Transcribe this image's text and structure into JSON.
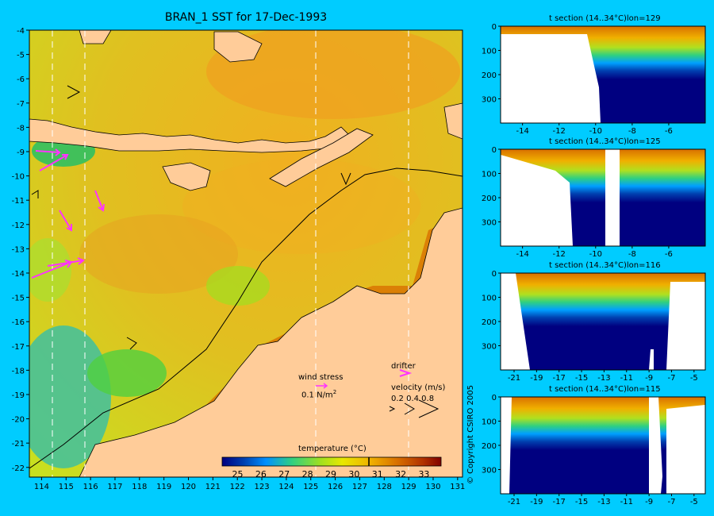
{
  "title": "BRAN_1 SST for 17-Dec-1993",
  "map": {
    "lon_ticks": [
      "114",
      "115",
      "116",
      "117",
      "118",
      "119",
      "120",
      "121",
      "122",
      "123",
      "124",
      "125",
      "126",
      "127",
      "128",
      "129",
      "130",
      "131"
    ],
    "lat_ticks": [
      "-4",
      "-5",
      "-6",
      "-7",
      "-8",
      "-9",
      "-10",
      "-11",
      "-12",
      "-13",
      "-14",
      "-15",
      "-16",
      "-17",
      "-18",
      "-19",
      "-20",
      "-21",
      "-22"
    ],
    "section_lons": [
      114.6,
      115.85,
      125.5,
      129.3
    ],
    "land_color": "#ffcc99",
    "vector_color": "#ff33ff",
    "legend": {
      "wind_stress_label": "wind stress",
      "wind_stress_scale": "0.1 N/m",
      "wind_stress_sup": "2",
      "drifter_label": "drifter",
      "velocity_label": "velocity (m/s)",
      "velocity_values": "0.2 0.4 0.8"
    }
  },
  "colorbar": {
    "title": "temperature (°C)",
    "ticks": [
      "25",
      "26",
      "27",
      "28",
      "29",
      "30",
      "31",
      "32",
      "33"
    ],
    "colors": [
      "#000080",
      "#0050c0",
      "#00a0ff",
      "#30d080",
      "#a0e020",
      "#e8e800",
      "#f0b000",
      "#d87000",
      "#b03000",
      "#800000"
    ],
    "range": [
      24.3,
      33.7
    ]
  },
  "chart_data": [
    {
      "type": "heatmap",
      "title": "BRAN_1 SST for 17-Dec-1993",
      "xlabel": "",
      "ylabel": "",
      "xlim": [
        113.5,
        131.2
      ],
      "ylim": [
        -22.4,
        -4
      ],
      "x_ticks": [
        114,
        115,
        116,
        117,
        118,
        119,
        120,
        121,
        122,
        123,
        124,
        125,
        126,
        127,
        128,
        129,
        130,
        131
      ],
      "y_ticks": [
        -4,
        -5,
        -6,
        -7,
        -8,
        -9,
        -10,
        -11,
        -12,
        -13,
        -14,
        -15,
        -16,
        -17,
        -18,
        -19,
        -20,
        -21,
        -22
      ],
      "colorbar_label": "temperature (°C)",
      "colorbar_range": [
        24.3,
        33.7
      ],
      "section_longitudes": [
        114.6,
        115.85,
        125.5,
        129.3
      ]
    },
    {
      "type": "heatmap",
      "title": "t section (14..34°C)lon=129",
      "x_ticks": [
        "-14",
        "-12",
        "-10",
        "-8",
        "-6"
      ],
      "y_ticks": [
        "0",
        "100",
        "200",
        "300"
      ],
      "xlim": [
        -15.2,
        -4
      ],
      "ylim": [
        400,
        0
      ],
      "mixed_layer_depth": 55,
      "thermocline_depth": 120
    },
    {
      "type": "heatmap",
      "title": "t section (14..34°C)lon=125",
      "x_ticks": [
        "-14",
        "-12",
        "-10",
        "-8",
        "-6"
      ],
      "y_ticks": [
        "0",
        "100",
        "200",
        "300"
      ],
      "xlim": [
        -15.2,
        -4
      ],
      "ylim": [
        400,
        0
      ],
      "mixed_layer_depth": 50,
      "thermocline_depth": 110
    },
    {
      "type": "heatmap",
      "title": "t section (14..34°C)lon=116",
      "x_ticks": [
        "-21",
        "-19",
        "-17",
        "-15",
        "-13",
        "-11",
        "-9",
        "-7",
        "-5"
      ],
      "y_ticks": [
        "0",
        "100",
        "200",
        "300"
      ],
      "xlim": [
        -22.2,
        -4
      ],
      "ylim": [
        400,
        0
      ],
      "mixed_layer_depth": 60,
      "thermocline_depth": 150
    },
    {
      "type": "heatmap",
      "title": "t section (14..34°C)lon=115",
      "x_ticks": [
        "-21",
        "-19",
        "-17",
        "-15",
        "-13",
        "-11",
        "-9",
        "-7",
        "-5"
      ],
      "y_ticks": [
        "0",
        "100",
        "200",
        "300"
      ],
      "xlim": [
        -22.2,
        -4
      ],
      "ylim": [
        400,
        0
      ],
      "mixed_layer_depth": 60,
      "thermocline_depth": 190
    }
  ],
  "copyright": "© Copyright CSIRO 2005"
}
